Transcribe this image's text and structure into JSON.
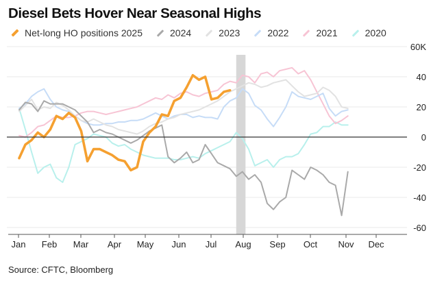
{
  "title": "Diesel Bets Hover Near Seasonal Highs",
  "source": "Source: CFTC, Bloomberg",
  "chart_data": {
    "type": "line",
    "title": "Diesel Bets Hover Near Seasonal Highs",
    "xlabel": "",
    "ylabel": "",
    "x_axis": {
      "labels": [
        "Jan",
        "Feb",
        "Mar",
        "Apr",
        "May",
        "Jun",
        "Jul",
        "Aug",
        "Sep",
        "Oct",
        "Nov",
        "Dec"
      ],
      "range": [
        "Jan",
        "Dec"
      ]
    },
    "y_axis": {
      "ticks": [
        60,
        40,
        20,
        0,
        -20,
        -40,
        -60
      ],
      "tick_labels": [
        "60K",
        "40",
        "20",
        "0",
        "-20",
        "-40",
        "-60"
      ],
      "ylim": [
        -63,
        62
      ],
      "side": "right",
      "zero_line": true
    },
    "grid": "horizontal",
    "highlight_band": {
      "from_week": 35,
      "to_week": 36
    },
    "legend_position": "top",
    "series": [
      {
        "name": "2020",
        "color": "#b8f0ec",
        "width": 2,
        "values": [
          19,
          5,
          -10,
          -24,
          -20,
          -18,
          -27,
          -30,
          -20,
          -5,
          -3,
          -1,
          2,
          1,
          0,
          -4,
          -6,
          -5,
          -8,
          -10,
          -12,
          -13,
          -14,
          -14,
          -14,
          -15,
          -15,
          -14,
          -13,
          -14,
          -11,
          -9,
          -7,
          -5,
          -3,
          3,
          -1,
          -8,
          -19,
          -17,
          -15,
          -20,
          -15,
          -13,
          -13,
          -11,
          -5,
          2,
          3,
          7,
          7,
          10,
          8,
          8
        ]
      },
      {
        "name": "2021",
        "color": "#f7c4d4",
        "width": 2,
        "values": [
          1,
          0,
          3,
          7,
          8,
          11,
          14,
          13,
          13,
          14,
          16,
          17,
          17,
          16,
          15,
          16,
          17,
          18,
          19,
          20,
          22,
          24,
          26,
          25,
          28,
          26,
          29,
          30,
          28,
          27,
          29,
          30,
          31,
          35,
          37,
          36,
          41,
          40,
          36,
          42,
          43,
          40,
          44,
          45,
          46,
          42,
          44,
          38,
          30,
          22,
          14,
          9,
          11,
          14
        ]
      },
      {
        "name": "2022",
        "color": "#c6dcf7",
        "width": 2,
        "values": [
          19,
          22,
          27,
          30,
          32,
          25,
          20,
          18,
          17,
          14,
          11,
          9,
          8,
          8,
          9,
          9,
          10,
          10,
          11,
          11,
          12,
          14,
          16,
          14,
          12,
          14,
          15,
          15,
          13,
          14,
          13,
          13,
          12,
          20,
          24,
          26,
          32,
          29,
          21,
          18,
          12,
          7,
          13,
          20,
          30,
          27,
          26,
          25,
          27,
          29,
          19,
          14,
          17,
          18
        ]
      },
      {
        "name": "2023",
        "color": "#e2e2e2",
        "width": 2,
        "values": [
          17,
          21,
          25,
          18,
          20,
          19,
          23,
          21,
          18,
          14,
          11,
          10,
          12,
          10,
          8,
          7,
          5,
          4,
          3,
          2,
          4,
          7,
          9,
          10,
          12,
          13,
          15,
          16,
          17,
          18,
          20,
          22,
          24,
          27,
          30,
          32,
          34,
          36,
          35,
          33,
          34,
          36,
          37,
          38,
          34,
          30,
          27,
          28,
          29,
          33,
          31,
          27,
          20,
          19
        ]
      },
      {
        "name": "2024",
        "color": "#a9a9a9",
        "width": 2,
        "values": [
          18,
          23,
          22,
          17,
          24,
          22,
          22,
          22,
          20,
          18,
          14,
          10,
          3,
          5,
          3,
          2,
          0,
          -2,
          -4,
          -2,
          1,
          4,
          6,
          8,
          -13,
          -17,
          -14,
          -10,
          -17,
          -15,
          -5,
          -11,
          -17,
          -19,
          -21,
          -26,
          -23,
          -28,
          -25,
          -30,
          -44,
          -48,
          -43,
          -40,
          -22,
          -25,
          -28,
          -20,
          -22,
          -25,
          -30,
          -32,
          -52,
          -23
        ]
      },
      {
        "name": "Net-long HO positions 2025",
        "color": "#f5a030",
        "width": 3.6,
        "values": [
          -14,
          -5,
          -2,
          3,
          0,
          5,
          14,
          12,
          16,
          13,
          4,
          -16,
          -8,
          -8,
          -10,
          -12,
          -15,
          -16,
          -22,
          -20,
          -3,
          3,
          7,
          15,
          14,
          24,
          26,
          33,
          41,
          38,
          40,
          25,
          26,
          30,
          31
        ]
      }
    ]
  }
}
